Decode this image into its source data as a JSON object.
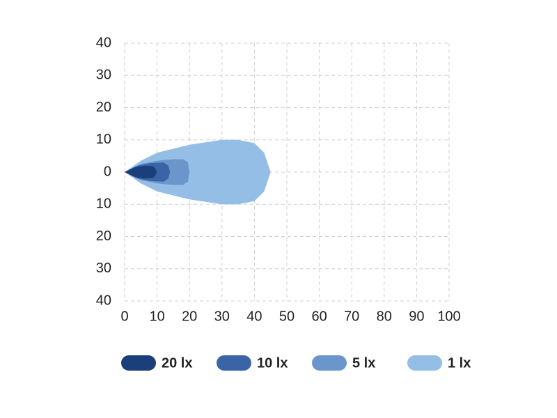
{
  "chart_data": {
    "type": "isolux",
    "xlim": [
      0,
      100
    ],
    "xticks": [
      0,
      10,
      20,
      30,
      40,
      50,
      60,
      70,
      80,
      90,
      100
    ],
    "ylim": [
      -40,
      40
    ],
    "yticks": [
      {
        "value": -40,
        "label": "40"
      },
      {
        "value": -30,
        "label": "30"
      },
      {
        "value": -20,
        "label": "20"
      },
      {
        "value": -10,
        "label": "10"
      },
      0,
      10,
      20,
      30,
      40
    ],
    "grid": true,
    "legend": "bottom",
    "series": [
      {
        "name": "20 lx",
        "color": "#1b3f7a",
        "x": [
          0,
          3,
          6,
          9,
          10
        ],
        "values": [
          0,
          1.5,
          2,
          1.8,
          0
        ]
      },
      {
        "name": "10 lx",
        "color": "#3b64a6",
        "x": [
          0,
          4,
          8,
          12,
          13.5,
          14
        ],
        "values": [
          0,
          2,
          2.8,
          3,
          2,
          0
        ]
      },
      {
        "name": "5 lx",
        "color": "#6b96cc",
        "x": [
          0,
          5,
          10,
          15,
          18,
          19.5,
          20
        ],
        "values": [
          0,
          2.5,
          3.5,
          4,
          4,
          3,
          0
        ]
      },
      {
        "name": "1 lx",
        "color": "#95bee7",
        "x": [
          0,
          5,
          10,
          20,
          30,
          35,
          40,
          43,
          45
        ],
        "values": [
          0,
          3.5,
          6,
          8.5,
          10,
          10,
          9,
          6,
          0
        ]
      }
    ]
  }
}
